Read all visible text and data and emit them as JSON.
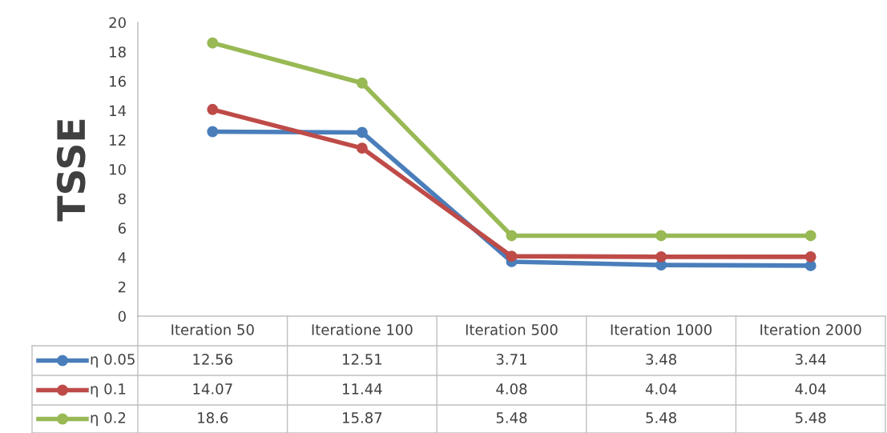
{
  "chart_data": {
    "type": "line",
    "ylabel": "TSSE",
    "categories": [
      "Iteration 50",
      "Iteratione 100",
      "Iteration 500",
      "Iteration 1000",
      "Iteration 2000"
    ],
    "series": [
      {
        "name": "η 0.05",
        "color": "#4a7ebb",
        "values": [
          12.56,
          12.51,
          3.71,
          3.48,
          3.44
        ]
      },
      {
        "name": "η 0.1",
        "color": "#be4b48",
        "values": [
          14.07,
          11.44,
          4.08,
          4.04,
          4.04
        ]
      },
      {
        "name": "η 0.2",
        "color": "#98b954",
        "values": [
          18.6,
          15.87,
          5.48,
          5.48,
          5.48
        ]
      }
    ],
    "ylim": [
      0,
      20
    ],
    "yticks": [
      0,
      2,
      4,
      6,
      8,
      10,
      12,
      14,
      16,
      18,
      20
    ],
    "grid": false,
    "legend": "bottom",
    "marker": "circle",
    "line_style": "solid",
    "data_labels": true
  }
}
